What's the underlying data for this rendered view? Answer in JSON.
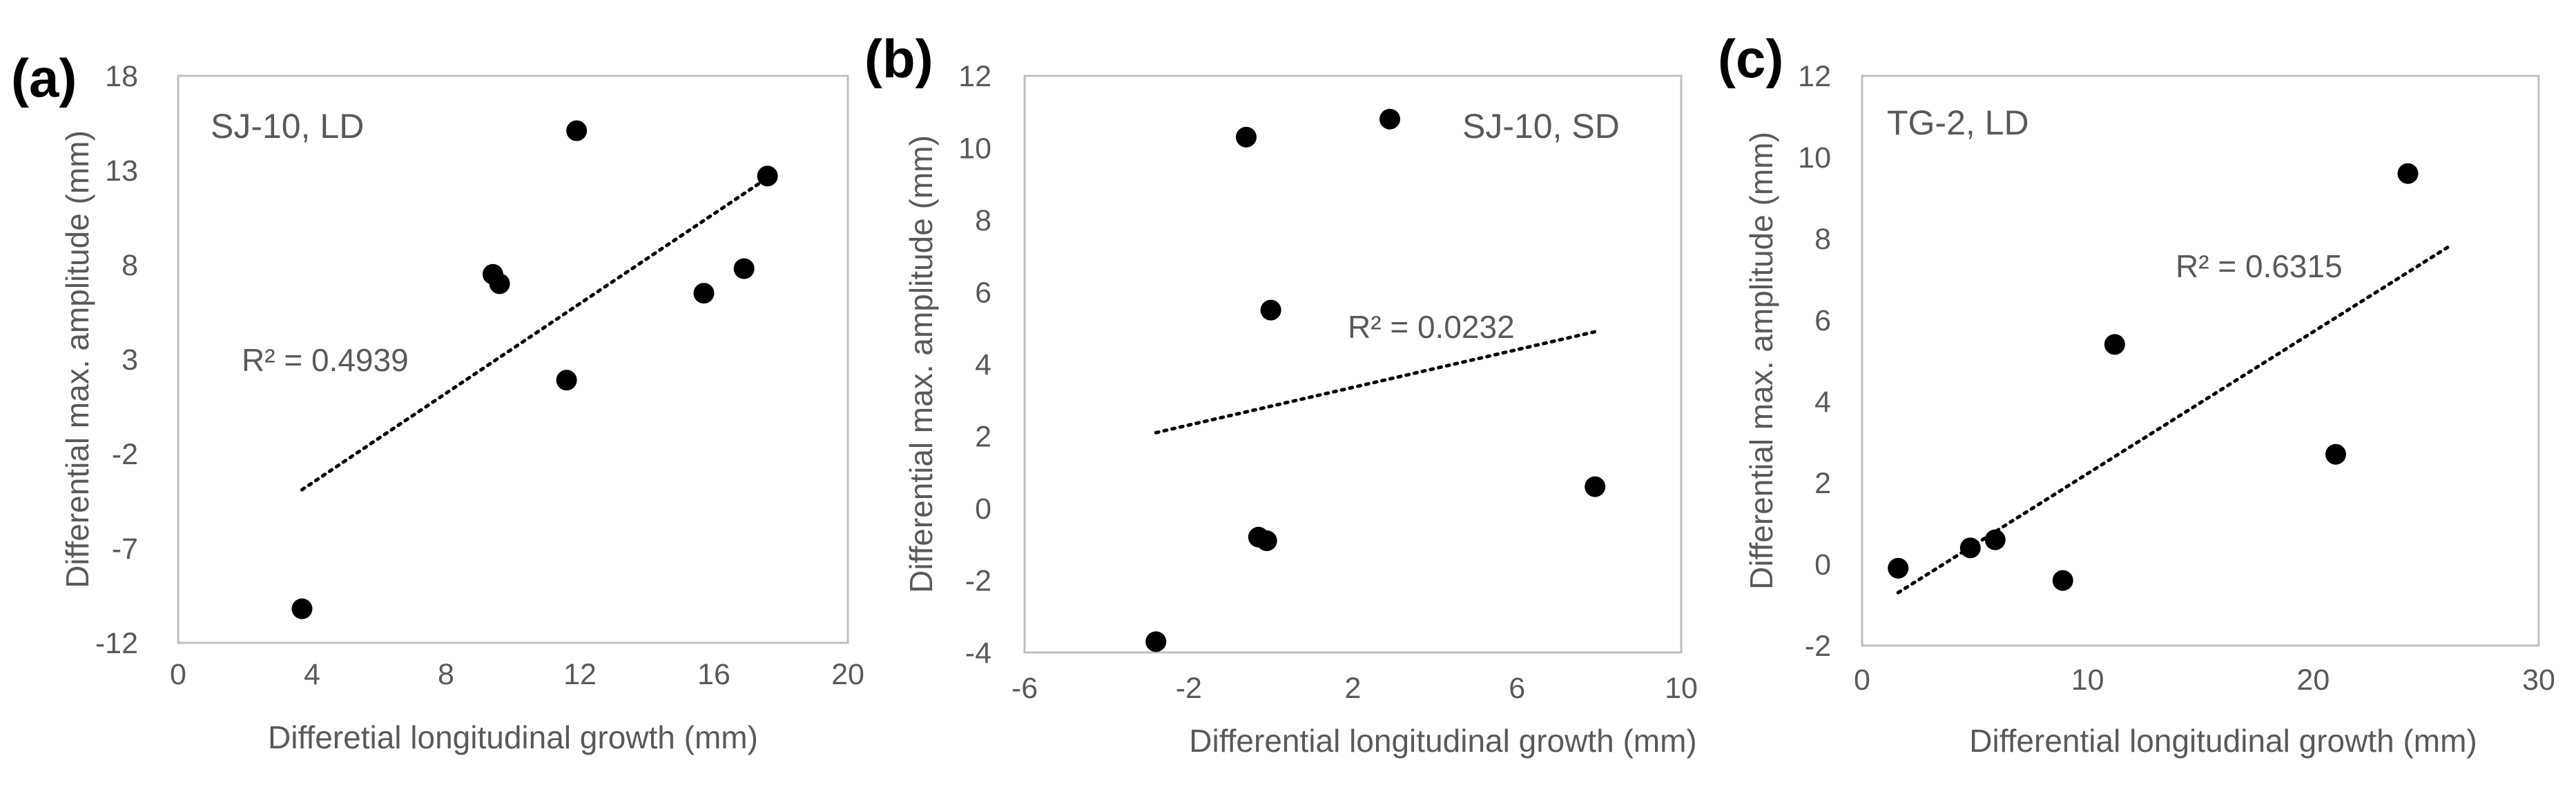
{
  "chart_data": [
    {
      "type": "scatter",
      "panel_label": "(a)",
      "annotation": "SJ-10, LD",
      "r_squared": "R² = 0.4939",
      "xlabel": "Differetial longitudinal  growth (mm)",
      "ylabel": "Differential max. amplitude  (mm)",
      "xlim": [
        0,
        20
      ],
      "ylim": [
        -12,
        18
      ],
      "xticks": [
        "0",
        "4",
        "8",
        "12",
        "16",
        "20"
      ],
      "yticks": [
        "-12",
        "-7",
        "-2",
        "3",
        "8",
        "13",
        "18"
      ],
      "points": [
        {
          "x": 3.7,
          "y": -10.2
        },
        {
          "x": 9.4,
          "y": 7.5
        },
        {
          "x": 9.6,
          "y": 7.0
        },
        {
          "x": 11.6,
          "y": 1.9
        },
        {
          "x": 11.9,
          "y": 15.1
        },
        {
          "x": 15.7,
          "y": 6.5
        },
        {
          "x": 16.9,
          "y": 7.8
        },
        {
          "x": 17.6,
          "y": 12.7
        }
      ],
      "trendline": {
        "x": [
          3.7,
          17.6
        ],
        "y": [
          -3.9,
          12.6
        ]
      }
    },
    {
      "type": "scatter",
      "panel_label": "(b)",
      "annotation": "SJ-10, SD",
      "r_squared": "R² = 0.0232",
      "xlabel": "Differential longitudinal  growth (mm)",
      "ylabel": "Differential max. amplitude  (mm)",
      "xlim": [
        -6,
        10
      ],
      "ylim": [
        -4,
        12
      ],
      "xticks": [
        "-6",
        "-2",
        "2",
        "6",
        "10"
      ],
      "yticks": [
        "-4",
        "-2",
        "0",
        "2",
        "4",
        "6",
        "8",
        "10",
        "12"
      ],
      "points": [
        {
          "x": -2.8,
          "y": -3.7
        },
        {
          "x": -0.6,
          "y": 10.3
        },
        {
          "x": -0.3,
          "y": -0.8
        },
        {
          "x": -0.1,
          "y": -0.9
        },
        {
          "x": 0.0,
          "y": 5.5
        },
        {
          "x": 2.9,
          "y": 10.8
        },
        {
          "x": 7.9,
          "y": 0.6
        }
      ],
      "trendline": {
        "x": [
          -2.8,
          7.9
        ],
        "y": [
          2.1,
          4.9
        ]
      }
    },
    {
      "type": "scatter",
      "panel_label": "(c)",
      "annotation": "TG-2, LD",
      "r_squared": "R² = 0.6315",
      "xlabel": "Differential longitudinal  growth (mm)",
      "ylabel": "Differential max. amplitude  (mm)",
      "xlim": [
        0,
        30
      ],
      "ylim": [
        -2,
        12
      ],
      "xticks": [
        "0",
        "10",
        "20",
        "30"
      ],
      "yticks": [
        "-2",
        "0",
        "2",
        "4",
        "6",
        "8",
        "10",
        "12"
      ],
      "points": [
        {
          "x": 1.6,
          "y": -0.1
        },
        {
          "x": 4.8,
          "y": 0.4
        },
        {
          "x": 5.9,
          "y": 0.6
        },
        {
          "x": 8.9,
          "y": -0.4
        },
        {
          "x": 11.2,
          "y": 5.4
        },
        {
          "x": 21.0,
          "y": 2.7
        },
        {
          "x": 24.2,
          "y": 9.6
        }
      ],
      "trendline": {
        "x": [
          1.6,
          26.0
        ],
        "y": [
          -0.7,
          7.8
        ]
      }
    }
  ]
}
